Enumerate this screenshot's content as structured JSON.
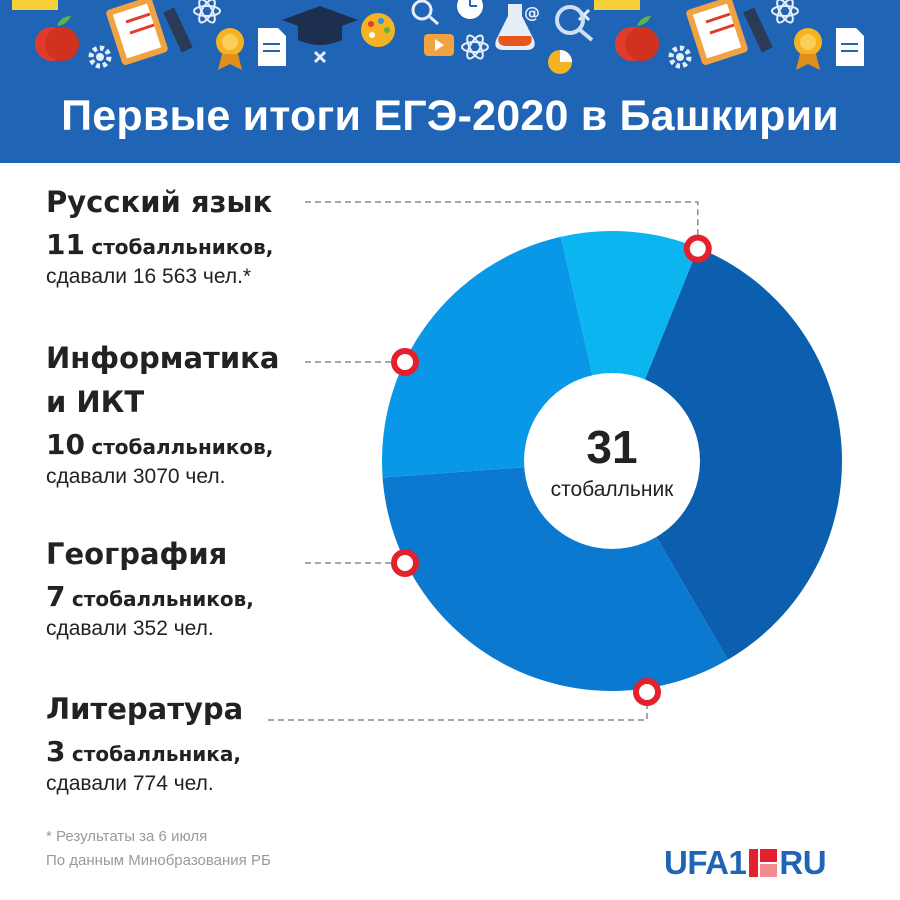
{
  "title": "Первые итоги ЕГЭ-2020 в Башкирии",
  "subjects": [
    {
      "name": "Русский язык",
      "count": "11",
      "count_word": "стобалльников,",
      "taken": "сдавали 16 563 чел.*"
    },
    {
      "name_line1": "Информатика",
      "name_line2": "и ИКТ",
      "count": "10",
      "count_word": "стобалльников,",
      "taken": "сдавали 3070 чел."
    },
    {
      "name": "География",
      "count": "7",
      "count_word": "стобалльников,",
      "taken": "сдавали 352 чел."
    },
    {
      "name": "Литература",
      "count": "3",
      "count_word": "стобалльника,",
      "taken": "сдавали 774 чел."
    }
  ],
  "chart_data": {
    "type": "pie",
    "donut": true,
    "center_value": "31",
    "center_label": "стобалльник",
    "total": 31,
    "slices": [
      {
        "label": "Русский язык",
        "value": 11,
        "color": "#0b5fae"
      },
      {
        "label": "Информатика и ИКТ",
        "value": 10,
        "color": "#0a79cf"
      },
      {
        "label": "География",
        "value": 7,
        "color": "#0997e8"
      },
      {
        "label": "Литература",
        "value": 3,
        "color": "#0bb5ef"
      }
    ],
    "marker_color": "#e3202b"
  },
  "footnote_line1": "* Результаты за 6 июля",
  "footnote_line2": "По данным Минобразования РБ",
  "logo": {
    "left": "UFA1",
    "right": "RU"
  },
  "colors": {
    "header_bg": "#1f64b5",
    "text": "#222222",
    "footnote": "#9a9a9a",
    "accent": "#e3202b"
  },
  "icons": [
    "apple-icon",
    "gear-icon",
    "clipboard-icon",
    "pencil-icon",
    "atom-icon",
    "graduation-cap-icon",
    "palette-icon",
    "medal-icon",
    "document-icon",
    "clock-icon",
    "flask-icon",
    "at-icon",
    "magnifier-icon",
    "ruler-icon",
    "video-icon",
    "close-icon",
    "pie-chart-icon"
  ]
}
